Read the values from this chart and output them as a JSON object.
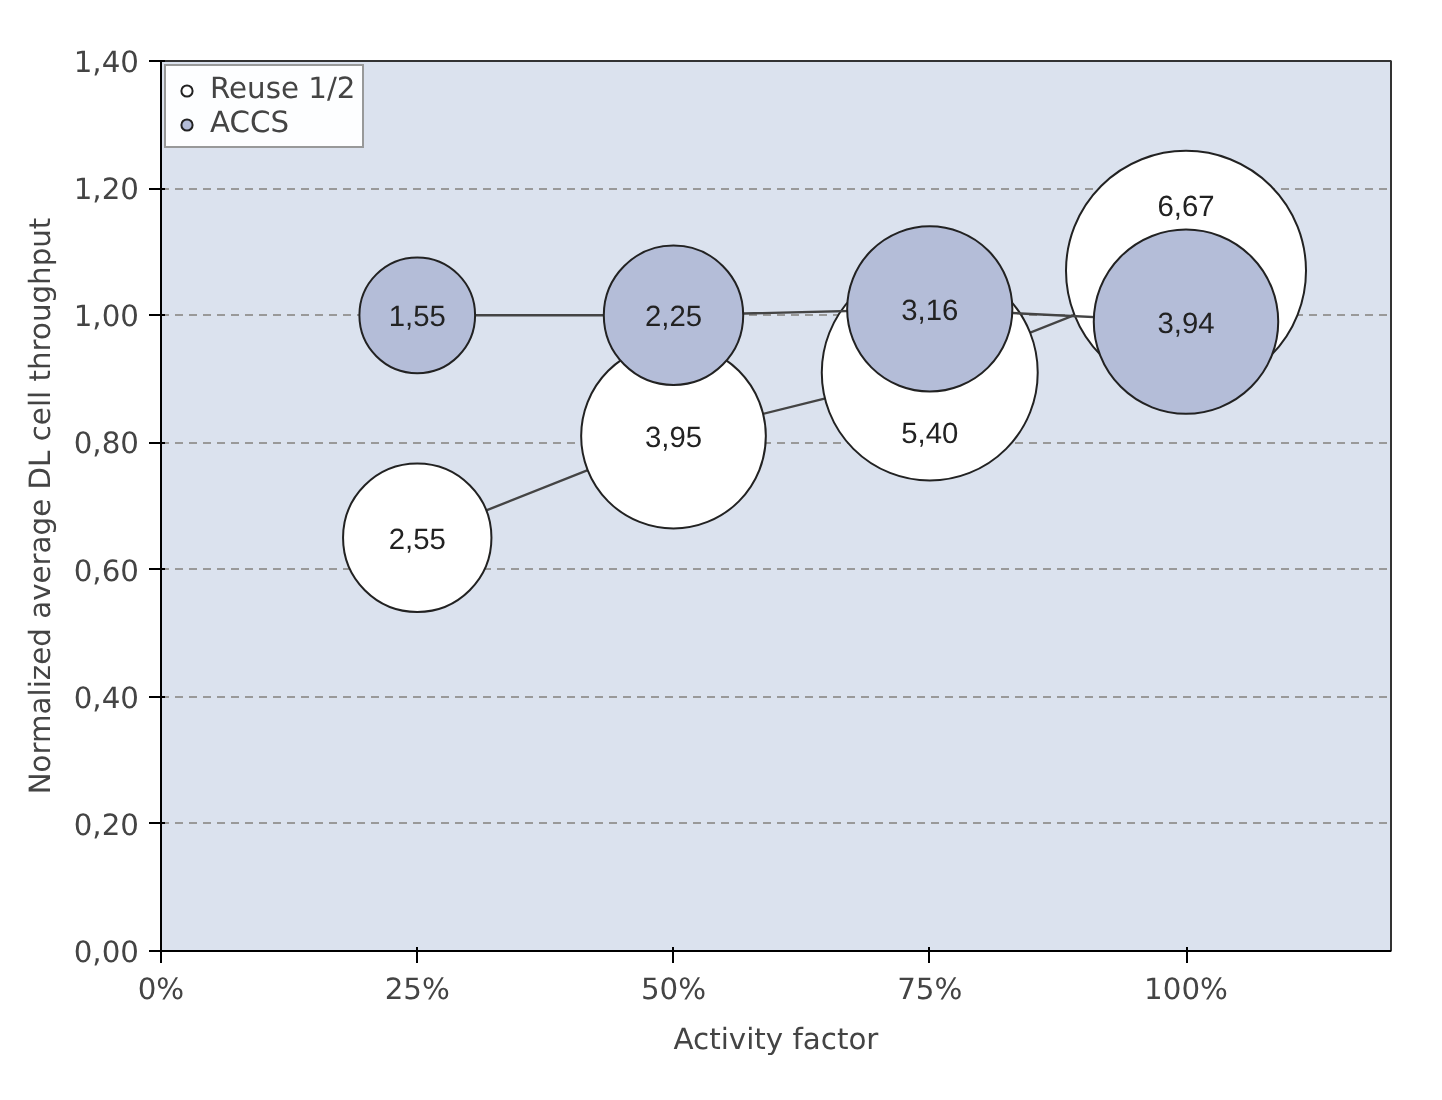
{
  "chart_data": {
    "type": "bubble",
    "xlabel": "Activity factor",
    "ylabel": "Normalized average DL cell throughput",
    "x": [
      25,
      50,
      75,
      100
    ],
    "xlim": [
      0,
      120
    ],
    "xticks": [
      {
        "value": 0,
        "label": "0%"
      },
      {
        "value": 25,
        "label": "25%"
      },
      {
        "value": 50,
        "label": "50%"
      },
      {
        "value": 75,
        "label": "75%"
      },
      {
        "value": 100,
        "label": "100%"
      }
    ],
    "ylim": [
      0,
      1.4
    ],
    "yticks": [
      {
        "value": 0,
        "label": "0,00"
      },
      {
        "value": 0.2,
        "label": "0,20"
      },
      {
        "value": 0.4,
        "label": "0,40"
      },
      {
        "value": 0.6,
        "label": "0,60"
      },
      {
        "value": 0.8,
        "label": "0,80"
      },
      {
        "value": 1.0,
        "label": "1,00"
      },
      {
        "value": 1.2,
        "label": "1,20"
      },
      {
        "value": 1.4,
        "label": "1,40"
      }
    ],
    "series": [
      {
        "name": "Reuse 1/2",
        "color": "#ffffff",
        "values": [
          0.65,
          0.81,
          0.91,
          1.07
        ],
        "sizes": [
          2.55,
          3.95,
          5.4,
          6.67
        ],
        "value_labels": [
          "2,55",
          "3,95",
          "5,40",
          "6,67"
        ]
      },
      {
        "name": "ACCS",
        "color": "#b4bdd8",
        "values": [
          1.0,
          1.0,
          1.01,
          0.99
        ],
        "sizes": [
          1.55,
          2.25,
          3.16,
          3.94
        ],
        "value_labels": [
          "1,55",
          "2,25",
          "3,16",
          "3,94"
        ]
      }
    ],
    "grid": "y",
    "legend": "top left",
    "line_style": "solid"
  }
}
